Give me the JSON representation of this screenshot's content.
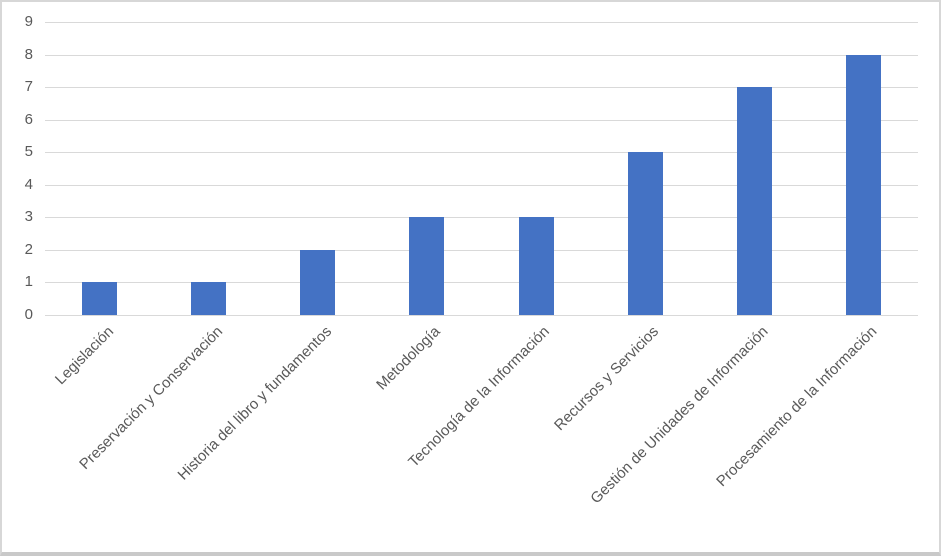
{
  "chart_data": {
    "type": "bar",
    "title": "",
    "xlabel": "",
    "ylabel": "",
    "categories": [
      "Legislación",
      "Preservación y Conservación",
      "Historia del libro y fundamentos",
      "Metodología",
      "Tecnología de la Información",
      "Recursos y Servicios",
      "Gestión de Unidades de Información",
      "Procesamiento de la Información"
    ],
    "values": [
      1,
      1,
      2,
      3,
      3,
      5,
      7,
      8
    ],
    "yticks": [
      "0",
      "1",
      "2",
      "3",
      "4",
      "5",
      "6",
      "7",
      "8",
      "9"
    ],
    "ylim": [
      0,
      9
    ],
    "grid": "horizontal",
    "legend_position": "none",
    "colors": {
      "bar": "#4472C4",
      "gridline": "#D9D9D9",
      "tick_label": "#595959",
      "background": "#FFFFFF",
      "frame_border": "#D7D7D7"
    }
  }
}
